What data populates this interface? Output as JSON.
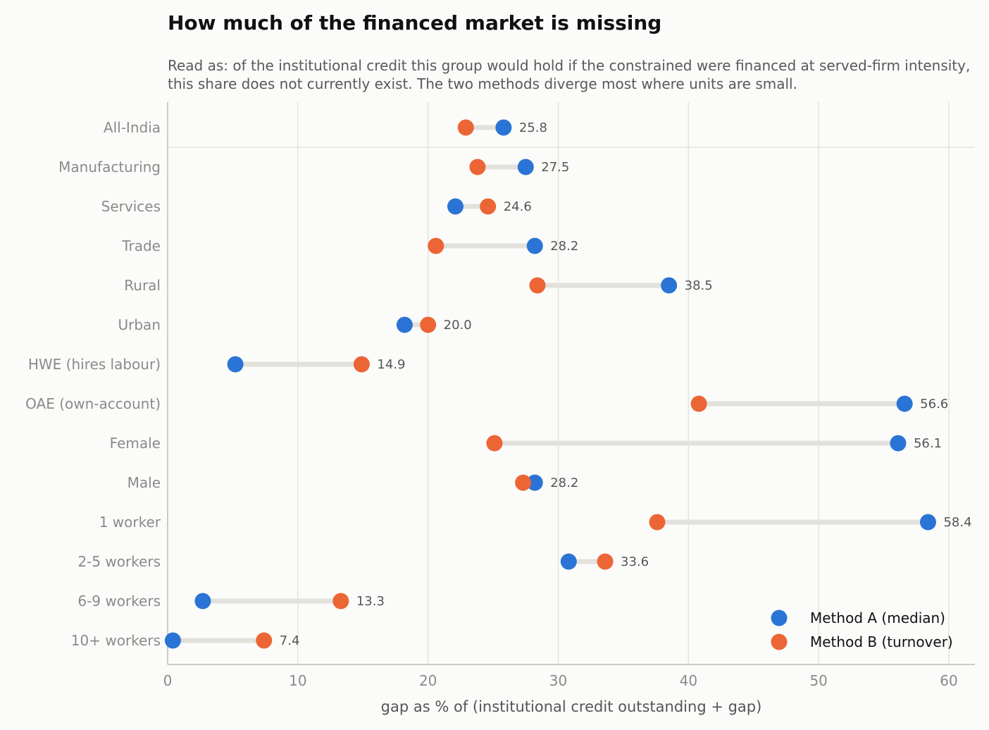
{
  "title": "How much of the financed market is missing",
  "subtitle": "Read as: of the institutional credit this group would hold if the constrained were financed at served-firm intensity, this share does not currently exist. The two methods diverge most where units are small.",
  "colors": {
    "method_a": "#2a74d5",
    "method_b": "#ec6535",
    "connector": "#e2e1dc",
    "grid": "#e3e2de",
    "axis": "#bdbcb6"
  },
  "chart_data": {
    "type": "dumbbell",
    "xlabel": "gap as % of (institutional credit outstanding + gap)",
    "xlim": [
      0,
      62
    ],
    "xticks": [
      0,
      10,
      20,
      30,
      40,
      50,
      60
    ],
    "grid": true,
    "legend": "bottom-right",
    "categories": [
      "All-India",
      "Manufacturing",
      "Services",
      "Trade",
      "Rural",
      "Urban",
      "HWE (hires labour)",
      "OAE (own-account)",
      "Female",
      "Male",
      "1 worker",
      "2-5 workers",
      "6-9 workers",
      "10+ workers"
    ],
    "series": [
      {
        "name": "Method A (median)",
        "values": [
          25.8,
          27.5,
          22.1,
          28.2,
          38.5,
          18.2,
          5.2,
          56.6,
          56.1,
          28.2,
          58.4,
          30.8,
          2.7,
          0.4
        ]
      },
      {
        "name": "Method B (turnover)",
        "values": [
          22.9,
          23.8,
          24.6,
          20.6,
          28.4,
          20.0,
          14.9,
          40.8,
          25.1,
          27.3,
          37.6,
          33.6,
          13.3,
          7.4
        ]
      }
    ],
    "labels": [
      "25.8",
      "27.5",
      "24.6",
      "28.2",
      "38.5",
      "20.0",
      "14.9",
      "56.6",
      "56.1",
      "28.2",
      "58.4",
      "33.6",
      "13.3",
      "7.4"
    ]
  }
}
